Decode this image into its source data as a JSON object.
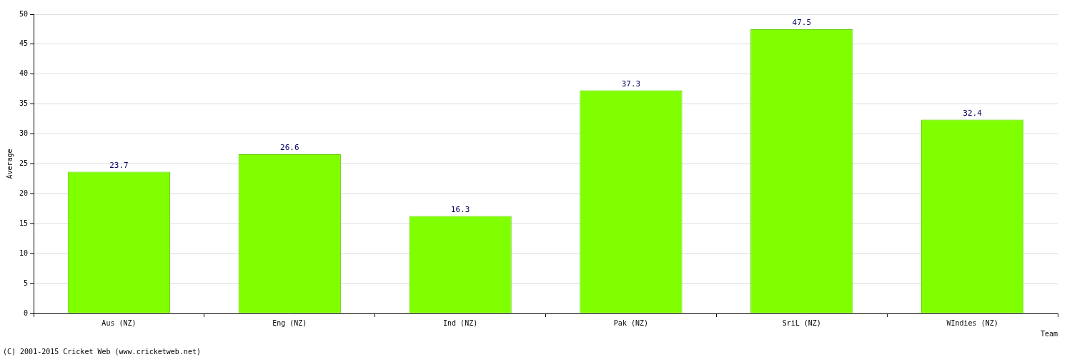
{
  "chart_data": {
    "type": "bar",
    "categories": [
      "Aus (NZ)",
      "Eng (NZ)",
      "Ind (NZ)",
      "Pak (NZ)",
      "SriL (NZ)",
      "WIndies (NZ)"
    ],
    "values": [
      23.7,
      26.6,
      16.3,
      37.3,
      47.5,
      32.4
    ],
    "color": "#80ff00",
    "x_label": "Team",
    "y_label": "Average",
    "annotation": "(C) 2001-2015 Cricket Web (www.cricketweb.net)",
    "ylim": [
      0,
      50
    ],
    "yticks": [
      0,
      5,
      10,
      15,
      20,
      25,
      30,
      35,
      40,
      45,
      50
    ],
    "grid": true,
    "data_labels": true
  }
}
